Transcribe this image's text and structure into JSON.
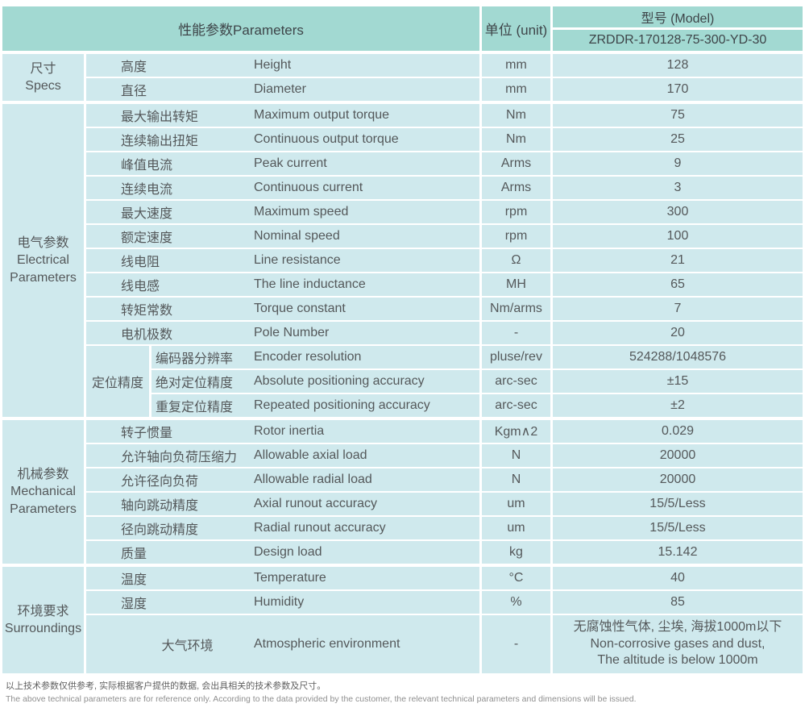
{
  "header": {
    "parameters": "性能参数Parameters",
    "unit": "单位 (unit)",
    "model_label": "型号 (Model)",
    "model_value": "ZRDDR-170128-75-300-YD-30"
  },
  "colors": {
    "header_teal": "#a2d9d2",
    "cell_blue": "#cfe9ed",
    "text": "#54585a"
  },
  "sections": [
    {
      "id": "specs",
      "label": "尺寸\nSpecs",
      "items": [
        {
          "cn": "高度",
          "en": "Height",
          "unit": "mm",
          "value": "128"
        },
        {
          "cn": "直径",
          "en": "Diameter",
          "unit": "mm",
          "value": "170"
        }
      ]
    },
    {
      "id": "electrical-parameters",
      "label": "电气参数\nElectrical\nParameters",
      "items": [
        {
          "cn": "最大输出转矩",
          "en": "Maximum output torque",
          "unit": "Nm",
          "value": "75"
        },
        {
          "cn": "连续输出扭矩",
          "en": "Continuous output torque",
          "unit": "Nm",
          "value": "25"
        },
        {
          "cn": "峰值电流",
          "en": "Peak current",
          "unit": "Arms",
          "value": "9"
        },
        {
          "cn": "连续电流",
          "en": "Continuous current",
          "unit": "Arms",
          "value": "3"
        },
        {
          "cn": "最大速度",
          "en": "Maximum speed",
          "unit": "rpm",
          "value": "300"
        },
        {
          "cn": "额定速度",
          "en": "Nominal speed",
          "unit": "rpm",
          "value": "100"
        },
        {
          "cn": "线电阻",
          "en": "Line resistance",
          "unit": "Ω",
          "value": "21"
        },
        {
          "cn": "线电感",
          "en": "The line inductance",
          "unit": "MH",
          "value": "65"
        },
        {
          "cn": "转矩常数",
          "en": "Torque constant",
          "unit": "Nm/arms",
          "value": "7"
        },
        {
          "cn": "电机极数",
          "en": "Pole Number",
          "unit": "-",
          "value": "20"
        },
        {
          "group_label": "定位精度",
          "rows": [
            {
              "cn": "编码器分辨率",
              "en": "Encoder resolution",
              "unit": "pluse/rev",
              "value": "524288/1048576"
            },
            {
              "cn": "绝对定位精度",
              "en": "Absolute positioning accuracy",
              "unit": "arc-sec",
              "value": "±15"
            },
            {
              "cn": "重复定位精度",
              "en": "Repeated positioning accuracy",
              "unit": "arc-sec",
              "value": "±2"
            }
          ]
        }
      ]
    },
    {
      "id": "mechanical-parameters",
      "label": "机械参数\nMechanical\nParameters",
      "items": [
        {
          "cn": "转子惯量",
          "en": "Rotor inertia",
          "unit": "Kgm∧2",
          "value": "0.029"
        },
        {
          "cn": "允许轴向负荷压缩力",
          "en": "Allowable axial load",
          "unit": "N",
          "value": "20000"
        },
        {
          "cn": "允许径向负荷",
          "en": "Allowable radial load",
          "unit": "N",
          "value": "20000"
        },
        {
          "cn": "轴向跳动精度",
          "en": "Axial runout accuracy",
          "unit": "um",
          "value": "15/5/Less"
        },
        {
          "cn": "径向跳动精度",
          "en": "Radial runout accuracy",
          "unit": "um",
          "value": "15/5/Less"
        },
        {
          "cn": "质量",
          "en": "Design load",
          "unit": "kg",
          "value": "15.142"
        }
      ]
    },
    {
      "id": "surroundings",
      "label": "环境要求\nSurroundings",
      "items": [
        {
          "cn": "温度",
          "en": "Temperature",
          "unit": "°C",
          "value": "40"
        },
        {
          "cn": "湿度",
          "en": "Humidity",
          "unit": "%",
          "value": "85"
        },
        {
          "cn": "大气环境",
          "en": "Atmospheric environment",
          "unit": "-",
          "tall": true,
          "value": "无腐蚀性气体, 尘埃, 海拔1000m以下\nNon-corrosive gases and dust,\nThe altitude is below 1000m"
        }
      ]
    }
  ],
  "footer": {
    "note_cn": "以上技术参数仅供参考, 实际根据客户提供的数据, 会出具相关的技术参数及尺寸。",
    "note_en": "The above technical parameters are for reference only. According to the data provided by the customer, the relevant technical parameters and dimensions will be issued."
  }
}
